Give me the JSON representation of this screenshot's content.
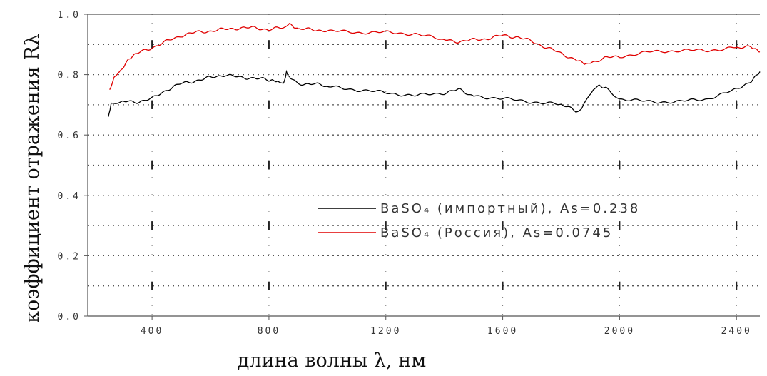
{
  "chart_data": {
    "type": "line",
    "xlabel": "длина волны λ, нм",
    "ylabel": "коэффициент отражения Rλ",
    "xlim": [
      180,
      2480
    ],
    "ylim": [
      0.0,
      1.0
    ],
    "x_ticks": [
      400,
      800,
      1200,
      1600,
      2000,
      2400
    ],
    "y_ticks": [
      0.0,
      0.2,
      0.4,
      0.6,
      0.8,
      1.0
    ],
    "x_tick_labels": [
      "400",
      "800",
      "1200",
      "1600",
      "2000",
      "2400"
    ],
    "y_tick_labels": [
      "0.0",
      "0.2",
      "0.4",
      "0.6",
      "0.8",
      "1.0"
    ],
    "grid": true,
    "legend_position": "center-right",
    "series": [
      {
        "name": "BaSO₄ (импортный), As=0.238",
        "color": "#000000",
        "x": [
          250,
          260,
          300,
          350,
          400,
          450,
          500,
          550,
          600,
          650,
          700,
          750,
          800,
          830,
          850,
          860,
          870,
          880,
          900,
          950,
          1000,
          1100,
          1200,
          1300,
          1400,
          1450,
          1500,
          1600,
          1700,
          1800,
          1850,
          1870,
          1890,
          1910,
          1930,
          1960,
          2000,
          2100,
          2200,
          2300,
          2400,
          2450,
          2480
        ],
        "y": [
          0.66,
          0.7,
          0.71,
          0.71,
          0.72,
          0.75,
          0.77,
          0.78,
          0.79,
          0.8,
          0.79,
          0.79,
          0.78,
          0.78,
          0.77,
          0.81,
          0.79,
          0.78,
          0.77,
          0.77,
          0.76,
          0.75,
          0.74,
          0.73,
          0.74,
          0.75,
          0.73,
          0.72,
          0.71,
          0.7,
          0.68,
          0.69,
          0.72,
          0.75,
          0.76,
          0.75,
          0.72,
          0.71,
          0.71,
          0.72,
          0.75,
          0.78,
          0.81
        ]
      },
      {
        "name": "BaSO₄ (Россия), As=0.0745",
        "color": "#e00000",
        "x": [
          255,
          270,
          290,
          320,
          350,
          400,
          450,
          500,
          550,
          600,
          650,
          700,
          750,
          800,
          850,
          870,
          900,
          950,
          1000,
          1100,
          1200,
          1300,
          1400,
          1450,
          1500,
          1550,
          1600,
          1650,
          1700,
          1750,
          1800,
          1850,
          1880,
          1900,
          1950,
          2000,
          2100,
          2200,
          2300,
          2400,
          2450,
          2480
        ],
        "y": [
          0.75,
          0.79,
          0.81,
          0.85,
          0.87,
          0.89,
          0.91,
          0.93,
          0.94,
          0.945,
          0.95,
          0.955,
          0.955,
          0.95,
          0.955,
          0.97,
          0.95,
          0.95,
          0.945,
          0.94,
          0.94,
          0.935,
          0.915,
          0.91,
          0.915,
          0.92,
          0.93,
          0.925,
          0.91,
          0.89,
          0.87,
          0.85,
          0.835,
          0.84,
          0.855,
          0.86,
          0.875,
          0.88,
          0.88,
          0.89,
          0.89,
          0.875
        ]
      }
    ],
    "legend": [
      {
        "label": "BaSO₄ (импортный), As=0.238",
        "color": "#000000"
      },
      {
        "label": "BaSO₄ (Россия), As=0.0745",
        "color": "#e00000"
      }
    ]
  }
}
